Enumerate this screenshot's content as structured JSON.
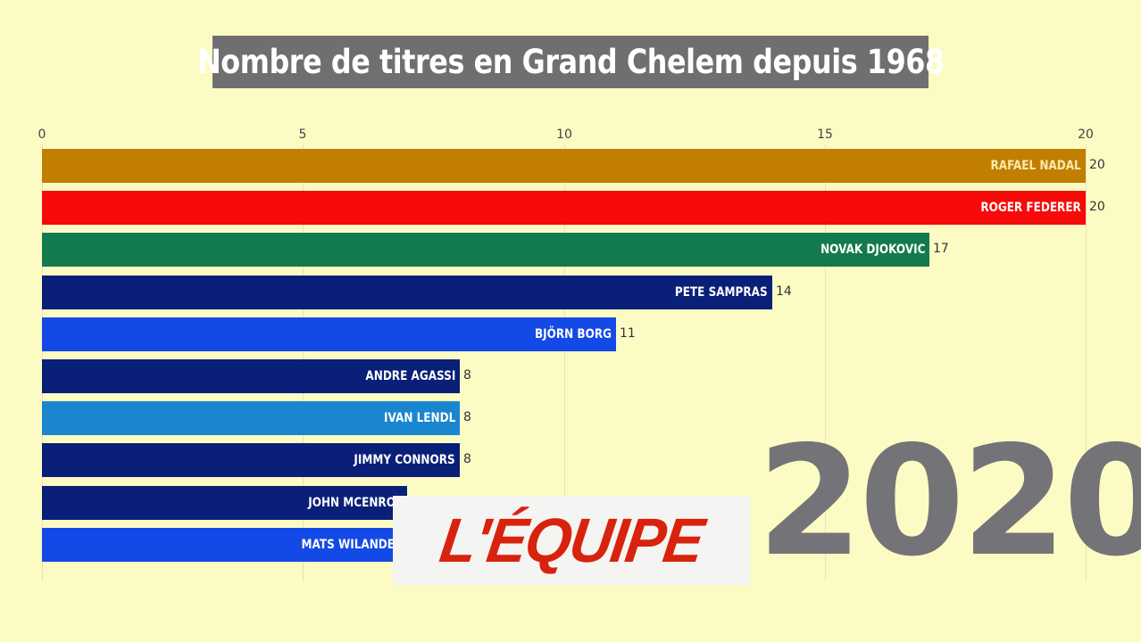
{
  "title": "Nombre de titres en Grand Chelem depuis 1968",
  "year": "2020",
  "logo_text": "L'ÉQUIPE",
  "colors": {
    "background": "#fdfbc4",
    "title_bg": "#6f6f72",
    "logo_red": "#d8220e",
    "year_gray": "#747478"
  },
  "axis": {
    "ticks": [
      "0",
      "5",
      "10",
      "15",
      "20"
    ]
  },
  "bars": [
    {
      "name": "RAFAEL NADAL",
      "value": "20",
      "color": "#c27e00"
    },
    {
      "name": "ROGER FEDERER",
      "value": "20",
      "color": "#f70a0a"
    },
    {
      "name": "NOVAK DJOKOVIC",
      "value": "17",
      "color": "#127a4c"
    },
    {
      "name": "PETE SAMPRAS",
      "value": "14",
      "color": "#0a1f78"
    },
    {
      "name": "BJÖRN BORG",
      "value": "11",
      "color": "#1349e6"
    },
    {
      "name": "ANDRE AGASSI",
      "value": "8",
      "color": "#0a1f78"
    },
    {
      "name": "IVAN LENDL",
      "value": "8",
      "color": "#1a86d0"
    },
    {
      "name": "JIMMY CONNORS",
      "value": "8",
      "color": "#0a1f78"
    },
    {
      "name": "JOHN MCENROE",
      "value": "7",
      "color": "#0a1f78"
    },
    {
      "name": "MATS WILANDER",
      "value": "7",
      "color": "#1349e6"
    }
  ],
  "chart_data": {
    "type": "bar",
    "orientation": "horizontal",
    "title": "Nombre de titres en Grand Chelem depuis 1968",
    "annotation": "2020",
    "categories": [
      "RAFAEL NADAL",
      "ROGER FEDERER",
      "NOVAK DJOKOVIC",
      "PETE SAMPRAS",
      "BJÖRN BORG",
      "ANDRE AGASSI",
      "IVAN LENDL",
      "JIMMY CONNORS",
      "JOHN MCENROE",
      "MATS WILANDER"
    ],
    "values": [
      20,
      20,
      17,
      14,
      11,
      8,
      8,
      8,
      7,
      7
    ],
    "xlabel": "",
    "ylabel": "",
    "xlim": [
      0,
      20
    ],
    "xticks": [
      0,
      5,
      10,
      15,
      20
    ],
    "xaxis_position": "top",
    "grid": true,
    "legend": "none"
  }
}
